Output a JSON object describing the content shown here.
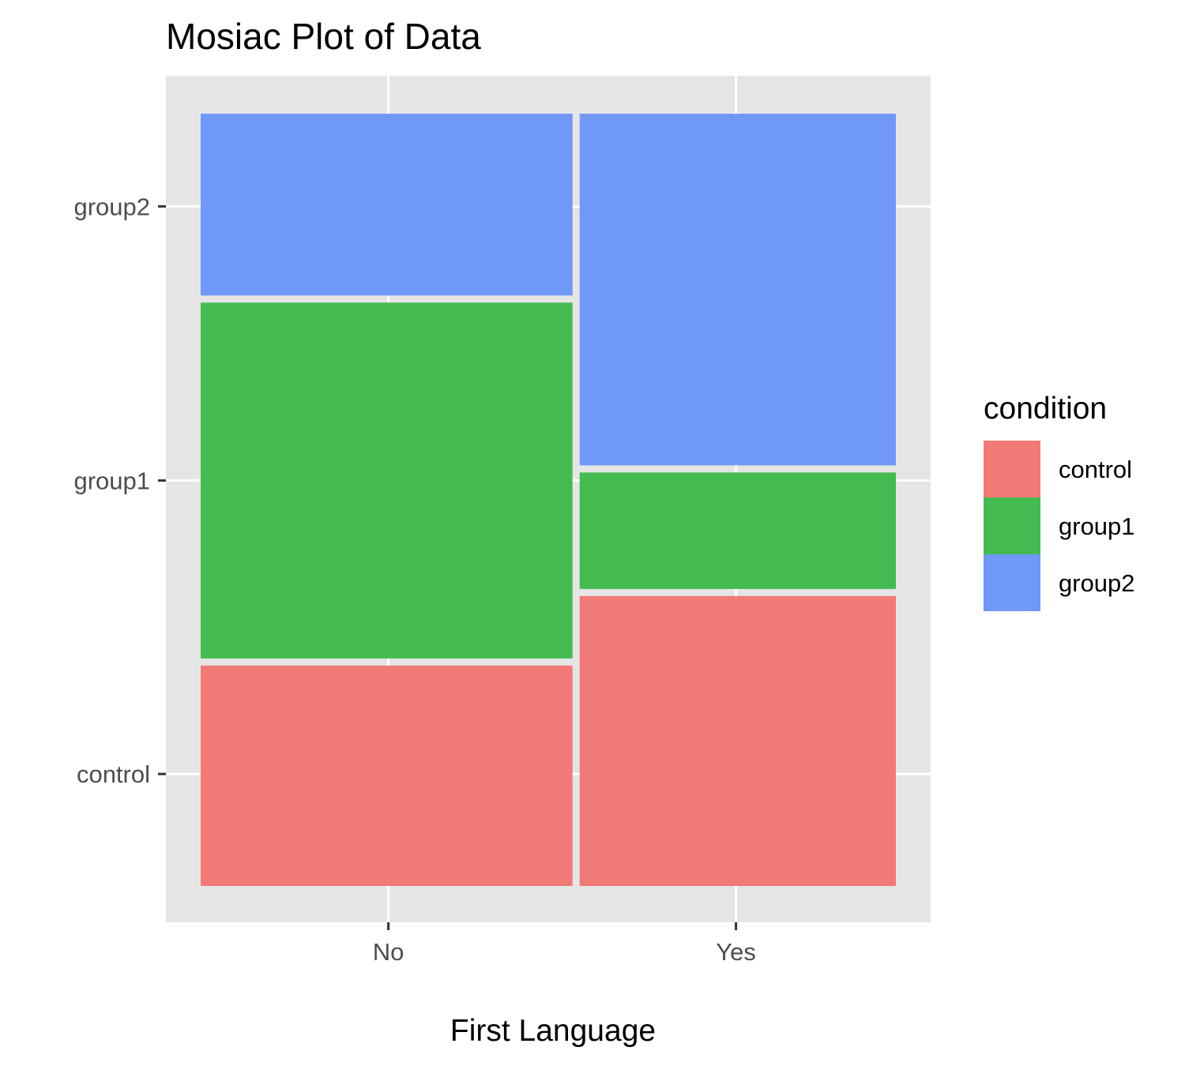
{
  "chart_data": {
    "type": "mosaic",
    "title": "Mosiac Plot of Data",
    "xlabel": "First Language",
    "ylabel": "",
    "categories": [
      "No",
      "Yes"
    ],
    "column_widths": [
      0.54,
      0.46
    ],
    "series": [
      {
        "name": "control",
        "proportions": [
          0.29,
          0.38
        ]
      },
      {
        "name": "group1",
        "proportions": [
          0.47,
          0.16
        ]
      },
      {
        "name": "group2",
        "proportions": [
          0.24,
          0.46
        ]
      }
    ],
    "y_tick_labels": [
      "control",
      "group1",
      "group2"
    ],
    "legend": {
      "title": "condition",
      "position": "right",
      "entries": [
        "control",
        "group1",
        "group2"
      ]
    },
    "grid": true
  },
  "colors": {
    "control": "#F17A76",
    "group1": "#43BB51",
    "group2": "#6F98F8",
    "panel_background": "#E5E5E5",
    "grid_line": "#FFFFFF"
  }
}
